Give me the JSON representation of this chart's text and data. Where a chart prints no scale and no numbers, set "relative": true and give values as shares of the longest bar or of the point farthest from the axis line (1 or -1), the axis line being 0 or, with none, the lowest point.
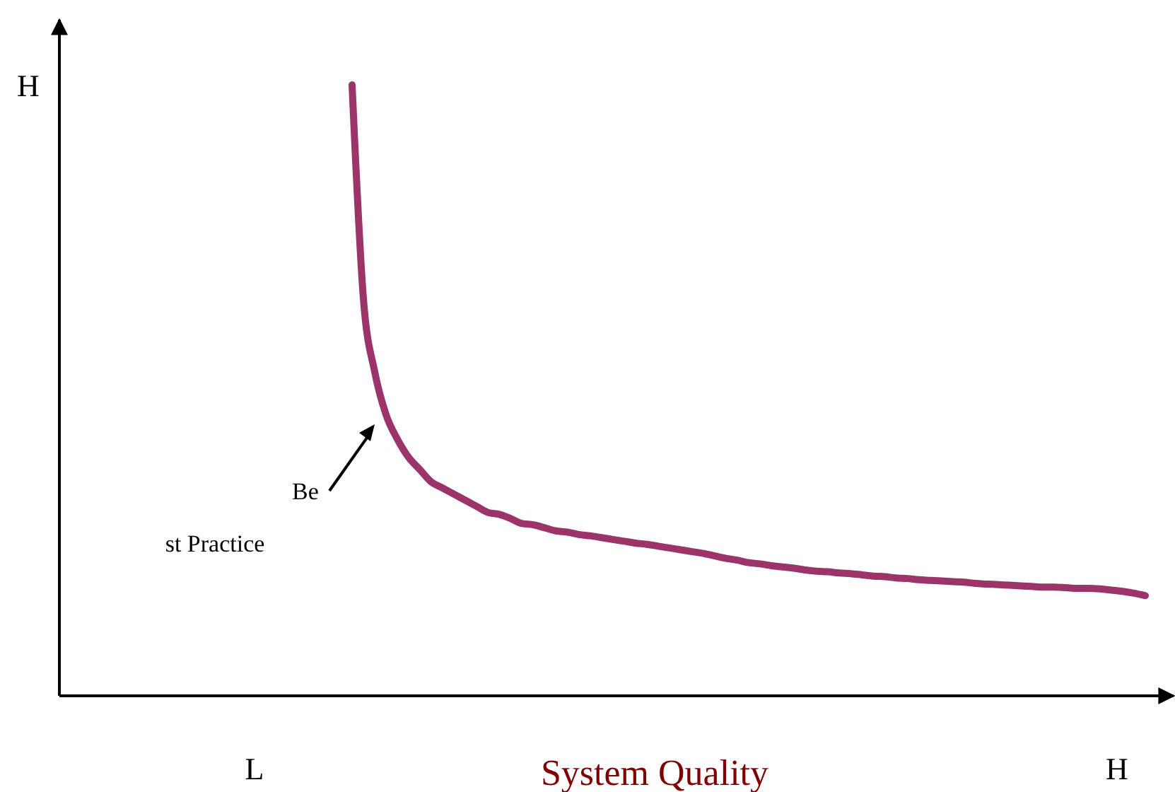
{
  "chart_data": {
    "type": "line",
    "relative": true,
    "xlabel": "System Quality",
    "categories": [
      null,
      null,
      null,
      null,
      null,
      null,
      null,
      null,
      null,
      null,
      null,
      null,
      null,
      null,
      null,
      null,
      null,
      null,
      null,
      null,
      null,
      null,
      null,
      null,
      null,
      null,
      null,
      null,
      null,
      null,
      null,
      null,
      null,
      null,
      null,
      null,
      null,
      null,
      null,
      null,
      null,
      null,
      null,
      null,
      null,
      null,
      null,
      null,
      null,
      null,
      null,
      null,
      null,
      null,
      null,
      null,
      null,
      null,
      null,
      null,
      null,
      null,
      null,
      null,
      null,
      null,
      null,
      null,
      null,
      null,
      null
    ],
    "series": [
      {
        "color": "#9b3468",
        "values": [
          1.0,
          0.65,
          0.53,
          0.46,
          0.42,
          0.39,
          0.37,
          0.35,
          0.34,
          0.33,
          0.32,
          0.31,
          0.3,
          0.297,
          0.29,
          0.282,
          0.28,
          0.275,
          0.27,
          0.268,
          0.264,
          0.262,
          0.259,
          0.256,
          0.253,
          0.25,
          0.248,
          0.245,
          0.242,
          0.239,
          0.236,
          0.233,
          0.229,
          0.225,
          0.222,
          0.218,
          0.216,
          0.213,
          0.211,
          0.209,
          0.206,
          0.204,
          0.203,
          0.201,
          0.2,
          0.198,
          0.196,
          0.195,
          0.193,
          0.192,
          0.19,
          0.189,
          0.188,
          0.187,
          0.186,
          0.184,
          0.183,
          0.182,
          0.181,
          0.18,
          0.179,
          0.178,
          0.178,
          0.177,
          0.176,
          0.176,
          0.175,
          0.173,
          0.171,
          0.168,
          0.164
        ]
      }
    ],
    "annotations": [
      "H",
      "L",
      "H",
      "Be",
      "st Practice"
    ],
    "marker": "none",
    "line_style": "solid",
    "grid": false
  }
}
